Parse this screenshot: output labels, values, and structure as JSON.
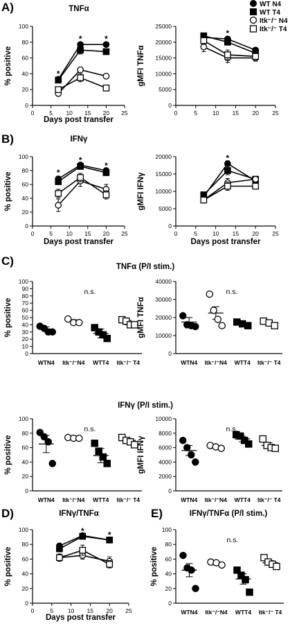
{
  "panel_labels": {
    "A": "A)",
    "B": "B)",
    "C": "C)",
    "D": "D)",
    "E": "E)"
  },
  "legend": [
    {
      "text": "WT N4",
      "shape": "circle",
      "filled": true
    },
    {
      "text": "WT T4",
      "shape": "square",
      "filled": true
    },
    {
      "text": "Itk⁻/⁻ N4",
      "shape": "circle",
      "filled": false
    },
    {
      "text": "Itk⁻/⁻ T4",
      "shape": "square",
      "filled": false
    }
  ],
  "chart_data": [
    {
      "id": "A1",
      "type": "line",
      "title": "TNFα",
      "xlabel": "Days post transfer",
      "ylabel": "% positive",
      "xlim": [
        0,
        25
      ],
      "ylim": [
        0,
        100
      ],
      "xticks": [
        "0",
        "5",
        "10",
        "15",
        "20",
        "25"
      ],
      "yticks": [
        "0",
        "20",
        "40",
        "60",
        "80",
        "100"
      ],
      "x": [
        7,
        13,
        20
      ],
      "series": [
        {
          "name": "WT N4",
          "values": [
            33,
            77,
            77
          ],
          "err": [
            3,
            3,
            2
          ]
        },
        {
          "name": "WT T4",
          "values": [
            32,
            70,
            68
          ],
          "err": [
            3,
            5,
            3
          ]
        },
        {
          "name": "Itk-/- N4",
          "values": [
            15,
            45,
            37
          ],
          "err": [
            2,
            3,
            2
          ]
        },
        {
          "name": "Itk-/- T4",
          "values": [
            20,
            35,
            22
          ],
          "err": [
            3,
            5,
            3
          ]
        }
      ],
      "annotations": [
        {
          "x": 7,
          "y": 40,
          "text": "*"
        },
        {
          "x": 13,
          "y": 84,
          "text": "*"
        },
        {
          "x": 20,
          "y": 84,
          "text": "*"
        }
      ]
    },
    {
      "id": "A2",
      "type": "line",
      "title": "",
      "xlabel": "",
      "ylabel": "gMFI TNFα",
      "xlim": [
        0,
        25
      ],
      "ylim": [
        0,
        25000
      ],
      "xticks": [
        "0",
        "5",
        "10",
        "15",
        "20",
        "25"
      ],
      "yticks": [
        "0",
        "5000",
        "10000",
        "15000",
        "20000",
        "25000"
      ],
      "x": [
        7,
        13,
        20
      ],
      "series": [
        {
          "name": "WT N4",
          "values": [
            21500,
            21000,
            17500
          ],
          "err": [
            600,
            700,
            500
          ]
        },
        {
          "name": "WT T4",
          "values": [
            22000,
            20000,
            16500
          ],
          "err": [
            600,
            800,
            600
          ]
        },
        {
          "name": "Itk-/- N4",
          "values": [
            18500,
            15000,
            15000
          ],
          "err": [
            1500,
            1500,
            1000
          ]
        },
        {
          "name": "Itk-/- T4",
          "values": [
            20500,
            16000,
            15500
          ],
          "err": [
            1200,
            1500,
            1000
          ]
        }
      ],
      "annotations": [
        {
          "x": 13,
          "y": 22800,
          "text": "*"
        }
      ]
    },
    {
      "id": "B1",
      "type": "line",
      "title": "IFNγ",
      "xlabel": "Days post transfer",
      "ylabel": "% positive",
      "xlim": [
        0,
        25
      ],
      "ylim": [
        0,
        100
      ],
      "xticks": [
        "0",
        "5",
        "10",
        "15",
        "20",
        "25"
      ],
      "yticks": [
        "0",
        "20",
        "40",
        "60",
        "80",
        "100"
      ],
      "x": [
        7,
        13,
        20
      ],
      "series": [
        {
          "name": "WT N4",
          "values": [
            68,
            88,
            80
          ],
          "err": [
            3,
            2,
            2
          ]
        },
        {
          "name": "WT T4",
          "values": [
            64,
            86,
            77
          ],
          "err": [
            4,
            3,
            3
          ]
        },
        {
          "name": "Itk-/- N4",
          "values": [
            30,
            65,
            53
          ],
          "err": [
            9,
            8,
            7
          ]
        },
        {
          "name": "Itk-/- T4",
          "values": [
            47,
            70,
            45
          ],
          "err": [
            6,
            6,
            6
          ]
        }
      ],
      "annotations": [
        {
          "x": 7,
          "y": 77,
          "text": "*"
        },
        {
          "x": 13,
          "y": 95,
          "text": "*"
        },
        {
          "x": 20,
          "y": 87,
          "text": "*"
        }
      ]
    },
    {
      "id": "B2",
      "type": "line",
      "title": "",
      "xlabel": "Days post transfer",
      "ylabel": "gMFI IFNγ",
      "xlim": [
        0,
        25
      ],
      "ylim": [
        0,
        20000
      ],
      "xticks": [
        "0",
        "5",
        "10",
        "15",
        "20",
        "25"
      ],
      "yticks": [
        "0",
        "5000",
        "10000",
        "15000",
        "20000"
      ],
      "x": [
        7,
        13,
        20
      ],
      "series": [
        {
          "name": "WT N4",
          "values": [
            8500,
            18000,
            13000
          ],
          "err": [
            400,
            800,
            600
          ]
        },
        {
          "name": "WT T4",
          "values": [
            9000,
            16000,
            13500
          ],
          "err": [
            400,
            1200,
            700
          ]
        },
        {
          "name": "Itk-/- N4",
          "values": [
            7500,
            12500,
            13500
          ],
          "err": [
            400,
            1200,
            700
          ]
        },
        {
          "name": "Itk-/- T4",
          "values": [
            7500,
            11500,
            11500
          ],
          "err": [
            400,
            1200,
            700
          ]
        }
      ],
      "annotations": [
        {
          "x": 13,
          "y": 19600,
          "text": "*"
        }
      ]
    },
    {
      "id": "C1",
      "type": "scatter",
      "title": "TNFα (P/I stim.)",
      "xlabel": "",
      "ylabel": "% positive",
      "categories": [
        "WTN4",
        "Itk⁻/⁻N4",
        "WTT4",
        "Itk⁻/⁻ T4"
      ],
      "ylim": [
        0,
        100
      ],
      "yticks": [
        "0",
        "10",
        "20",
        "30",
        "40",
        "50",
        "60",
        "70",
        "80",
        "90",
        "100"
      ],
      "groups": [
        {
          "shape": "circle",
          "filled": true,
          "points": [
            38,
            35,
            30,
            30
          ],
          "mean": 34,
          "sem": 3
        },
        {
          "shape": "circle",
          "filled": false,
          "points": [
            48,
            43,
            43
          ],
          "mean": 45,
          "sem": 2
        },
        {
          "shape": "square",
          "filled": true,
          "points": [
            36,
            30,
            26,
            21
          ],
          "mean": 28,
          "sem": 6
        },
        {
          "shape": "square",
          "filled": false,
          "points": [
            47,
            45,
            40,
            40
          ],
          "mean": 43,
          "sem": 3
        }
      ],
      "annotation": "n.s."
    },
    {
      "id": "C2",
      "type": "scatter",
      "title": "",
      "xlabel": "",
      "ylabel": "gMFI TNFα",
      "categories": [
        "WTN4",
        "Itk⁻/⁻N4",
        "WTT4",
        "Itk⁻/⁻ T4"
      ],
      "ylim": [
        0,
        40000
      ],
      "yticks": [
        "0",
        "10000",
        "20000",
        "30000",
        "40000"
      ],
      "groups": [
        {
          "shape": "circle",
          "filled": true,
          "points": [
            21000,
            16000,
            15500,
            15000
          ],
          "mean": 17500,
          "sem": 2500
        },
        {
          "shape": "circle",
          "filled": false,
          "points": [
            33000,
            24000,
            19000,
            15500
          ],
          "mean": 22500,
          "sem": 3500
        },
        {
          "shape": "square",
          "filled": true,
          "points": [
            17500,
            16500,
            15500
          ],
          "mean": 16000,
          "sem": 800
        },
        {
          "shape": "square",
          "filled": false,
          "points": [
            18000,
            17000,
            15500
          ],
          "mean": 16500,
          "sem": 800
        }
      ],
      "annotation": "n.s."
    },
    {
      "id": "C3",
      "type": "scatter",
      "title": "IFNγ (P/I stim.)",
      "xlabel": "",
      "ylabel": "% positive",
      "categories": [
        "WTN4",
        "Itk⁻/⁻N4",
        "WTT4",
        "Itk⁻/⁻ T4"
      ],
      "ylim": [
        0,
        100
      ],
      "yticks": [
        "0",
        "20",
        "40",
        "60",
        "80",
        "100"
      ],
      "groups": [
        {
          "shape": "circle",
          "filled": true,
          "points": [
            81,
            75,
            68,
            38
          ],
          "mean": 65,
          "sem": 12
        },
        {
          "shape": "circle",
          "filled": false,
          "points": [
            74,
            73,
            73
          ],
          "mean": 73,
          "sem": 1
        },
        {
          "shape": "square",
          "filled": true,
          "points": [
            66,
            55,
            47,
            38
          ],
          "mean": 49,
          "sem": 10
        },
        {
          "shape": "square",
          "filled": false,
          "points": [
            74,
            70,
            68,
            64
          ],
          "mean": 70,
          "sem": 3
        }
      ],
      "annotation": "n.s."
    },
    {
      "id": "C4",
      "type": "scatter",
      "title": "",
      "xlabel": "",
      "ylabel": "gMFI IFNγ",
      "categories": [
        "WTN4",
        "Itk⁻/⁻N4",
        "WTT4",
        "Itk⁻/⁻ T4"
      ],
      "ylim": [
        0,
        10000
      ],
      "yticks": [
        "0",
        "2000",
        "4000",
        "6000",
        "8000",
        "10000"
      ],
      "groups": [
        {
          "shape": "circle",
          "filled": true,
          "points": [
            7000,
            6000,
            5000,
            4000
          ],
          "mean": 5600,
          "sem": 700
        },
        {
          "shape": "circle",
          "filled": false,
          "points": [
            6300,
            6100,
            5900
          ],
          "mean": 6100,
          "sem": 200
        },
        {
          "shape": "square",
          "filled": true,
          "points": [
            7800,
            7600,
            7000,
            6500
          ],
          "mean": 7200,
          "sem": 400
        },
        {
          "shape": "square",
          "filled": false,
          "points": [
            7200,
            6300,
            6000,
            5900
          ],
          "mean": 6300,
          "sem": 400
        }
      ],
      "annotation": "n.s."
    },
    {
      "id": "D1",
      "type": "line",
      "title": "IFNγ/TNFα",
      "xlabel": "Days post transfer",
      "ylabel": "% positive",
      "xlim": [
        0,
        25
      ],
      "ylim": [
        0,
        100
      ],
      "xticks": [
        "0",
        "5",
        "10",
        "15",
        "20",
        "25"
      ],
      "yticks": [
        "0",
        "20",
        "40",
        "60",
        "80",
        "100"
      ],
      "x": [
        7,
        13,
        20
      ],
      "series": [
        {
          "name": "WT N4",
          "values": [
            78,
            92,
            86
          ],
          "err": [
            3,
            2,
            2
          ]
        },
        {
          "name": "WT T4",
          "values": [
            74,
            91,
            86
          ],
          "err": [
            4,
            2,
            2
          ]
        },
        {
          "name": "Itk-/- N4",
          "values": [
            62,
            65,
            57
          ],
          "err": [
            4,
            5,
            6
          ]
        },
        {
          "name": "Itk-/- T4",
          "values": [
            62,
            72,
            53
          ],
          "err": [
            5,
            7,
            5
          ]
        }
      ],
      "annotations": [
        {
          "x": 13,
          "y": 98,
          "text": "*"
        },
        {
          "x": 20,
          "y": 93,
          "text": "*"
        }
      ]
    },
    {
      "id": "E1",
      "type": "scatter",
      "title": "IFNγ/TNFα (P/I stim.)",
      "xlabel": "",
      "ylabel": "% positive",
      "categories": [
        "WTN4",
        "Itk⁻/⁻N4",
        "WTT4",
        "Itk⁻/⁻ T4"
      ],
      "ylim": [
        0,
        100
      ],
      "yticks": [
        "0",
        "20",
        "40",
        "60",
        "80",
        "100"
      ],
      "groups": [
        {
          "shape": "circle",
          "filled": true,
          "points": [
            65,
            48,
            45,
            20
          ],
          "mean": 45,
          "sem": 9
        },
        {
          "shape": "circle",
          "filled": false,
          "points": [
            56,
            55,
            52
          ],
          "mean": 54,
          "sem": 2
        },
        {
          "shape": "square",
          "filled": true,
          "points": [
            45,
            38,
            32,
            15
          ],
          "mean": 33,
          "sem": 7
        },
        {
          "shape": "square",
          "filled": false,
          "points": [
            62,
            56,
            53,
            50
          ],
          "mean": 55,
          "sem": 3
        }
      ],
      "annotation": "n.s."
    }
  ]
}
